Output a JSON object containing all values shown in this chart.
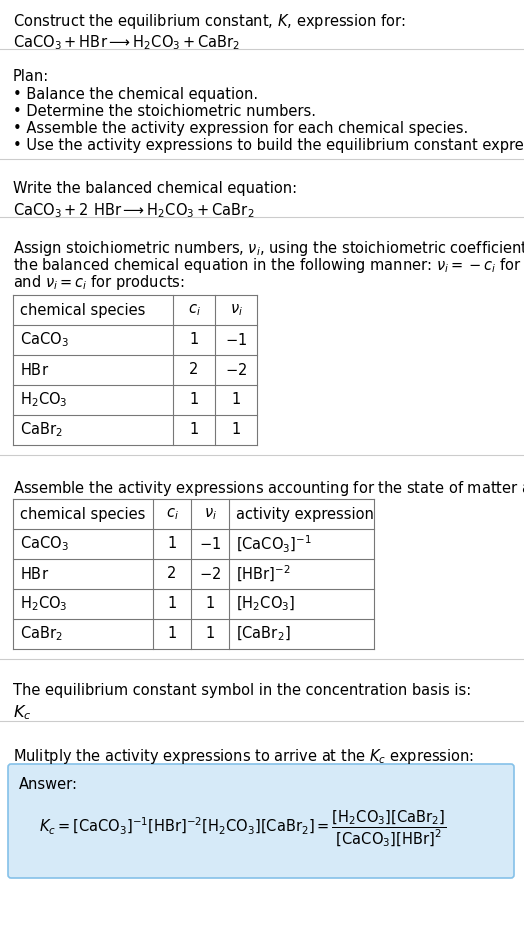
{
  "title_line1": "Construct the equilibrium constant, $K$, expression for:",
  "title_line2": "$\\mathrm{CaCO_3 + HBr \\longrightarrow H_2CO_3 + CaBr_2}$",
  "plan_header": "Plan:",
  "plan_items": [
    "• Balance the chemical equation.",
    "• Determine the stoichiometric numbers.",
    "• Assemble the activity expression for each chemical species.",
    "• Use the activity expressions to build the equilibrium constant expression."
  ],
  "balanced_header": "Write the balanced chemical equation:",
  "balanced_eq": "$\\mathrm{CaCO_3 + 2\\ HBr \\longrightarrow H_2CO_3 + CaBr_2}$",
  "stoich_intro1": "Assign stoichiometric numbers, $\\nu_i$, using the stoichiometric coefficients, $c_i$, from",
  "stoich_intro2": "the balanced chemical equation in the following manner: $\\nu_i = -c_i$ for reactants",
  "stoich_intro3": "and $\\nu_i = c_i$ for products:",
  "table1_headers": [
    "chemical species",
    "$c_i$",
    "$\\nu_i$"
  ],
  "table1_rows": [
    [
      "$\\mathrm{CaCO_3}$",
      "1",
      "$-1$"
    ],
    [
      "$\\mathrm{HBr}$",
      "2",
      "$-2$"
    ],
    [
      "$\\mathrm{H_2CO_3}$",
      "1",
      "1"
    ],
    [
      "$\\mathrm{CaBr_2}$",
      "1",
      "1"
    ]
  ],
  "activity_intro": "Assemble the activity expressions accounting for the state of matter and $\\nu_i$:",
  "table2_headers": [
    "chemical species",
    "$c_i$",
    "$\\nu_i$",
    "activity expression"
  ],
  "table2_rows": [
    [
      "$\\mathrm{CaCO_3}$",
      "1",
      "$-1$",
      "$[\\mathrm{CaCO_3}]^{-1}$"
    ],
    [
      "$\\mathrm{HBr}$",
      "2",
      "$-2$",
      "$[\\mathrm{HBr}]^{-2}$"
    ],
    [
      "$\\mathrm{H_2CO_3}$",
      "1",
      "1",
      "$[\\mathrm{H_2CO_3}]$"
    ],
    [
      "$\\mathrm{CaBr_2}$",
      "1",
      "1",
      "$[\\mathrm{CaBr_2}]$"
    ]
  ],
  "kc_line1": "The equilibrium constant symbol in the concentration basis is:",
  "kc_symbol": "$K_c$",
  "multiply_line": "Mulitply the activity expressions to arrive at the $K_c$ expression:",
  "answer_label": "Answer:",
  "answer_eq": "$K_c = [\\mathrm{CaCO_3}]^{-1}[\\mathrm{HBr}]^{-2}[\\mathrm{H_2CO_3}][\\mathrm{CaBr_2}] = \\dfrac{[\\mathrm{H_2CO_3}][\\mathrm{CaBr_2}]}{[\\mathrm{CaCO_3}][\\mathrm{HBr}]^2}$",
  "answer_box_color": "#d6eaf8",
  "answer_box_border": "#85c1e9",
  "bg_color": "#ffffff",
  "text_color": "#000000",
  "font_size": 10.5
}
